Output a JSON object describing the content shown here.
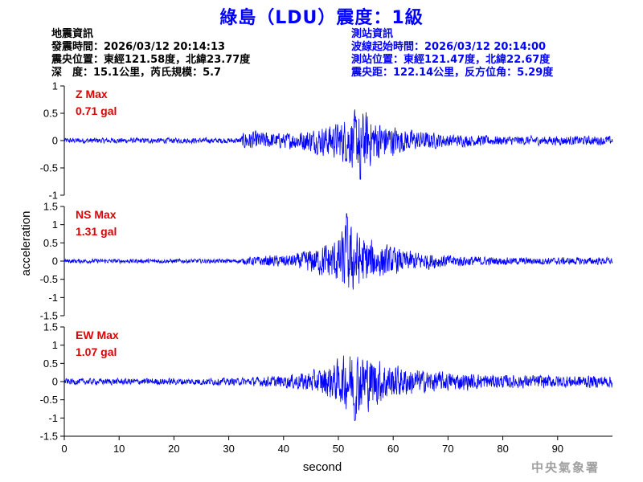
{
  "title": "綠島（LDU）震度：1級",
  "quake_info": {
    "heading": "地震資訊",
    "origin_time": "發震時間：2026/03/12 20:14:13",
    "epicenter": "震央位置：東經121.58度，北緯23.77度",
    "depth_magnitude": "深　度：15.1公里，芮氏規模：5.7"
  },
  "station_info": {
    "heading": "測站資訊",
    "wave_start": "波線起始時間：2026/03/12 20:14:00",
    "location": "測站位置：東經121.47度，北緯22.67度",
    "distance": "震央距：122.14公里，反方位角：5.29度"
  },
  "footer": "中央氣象署",
  "colors": {
    "trace": "#0000ff",
    "label": "#e00000",
    "title": "#0000ff",
    "axis": "#000000"
  },
  "chart_data": {
    "type": "line",
    "xlabel": "second",
    "ylabel": "acceleration",
    "xlim": [
      0,
      100
    ],
    "x_ticks": [
      "0",
      "10",
      "20",
      "30",
      "40",
      "50",
      "60",
      "70",
      "80",
      "90"
    ],
    "x_tick_values": [
      0,
      10,
      20,
      30,
      40,
      50,
      60,
      70,
      80,
      90
    ],
    "grid": false,
    "panels": [
      {
        "component": "Z",
        "name": "Z Max",
        "peak": "0.71 gal",
        "ylim": [
          -1,
          1
        ],
        "y_ticks": [
          "1",
          "0.5",
          "0",
          "-0.5",
          "-1"
        ],
        "y_tick_values": [
          1,
          0.5,
          0,
          -0.5,
          -1
        ],
        "envelope": [
          [
            0,
            0.06
          ],
          [
            32,
            0.06
          ],
          [
            33,
            0.22
          ],
          [
            40,
            0.16
          ],
          [
            45,
            0.25
          ],
          [
            50,
            0.4
          ],
          [
            52,
            0.55
          ],
          [
            54,
            0.71
          ],
          [
            57,
            0.45
          ],
          [
            62,
            0.25
          ],
          [
            70,
            0.14
          ],
          [
            80,
            0.1
          ],
          [
            100,
            0.1
          ]
        ]
      },
      {
        "component": "NS",
        "name": "NS Max",
        "peak": "1.31 gal",
        "ylim": [
          -1.5,
          1.5
        ],
        "y_ticks": [
          "1.5",
          "1",
          "0.5",
          "0",
          "-0.5",
          "-1",
          "-1.5"
        ],
        "y_tick_values": [
          1.5,
          1,
          0.5,
          0,
          -0.5,
          -1,
          -1.5
        ],
        "envelope": [
          [
            0,
            0.07
          ],
          [
            32,
            0.07
          ],
          [
            34,
            0.15
          ],
          [
            42,
            0.22
          ],
          [
            46,
            0.45
          ],
          [
            50,
            0.75
          ],
          [
            51.5,
            1.31
          ],
          [
            54,
            0.85
          ],
          [
            57,
            0.6
          ],
          [
            62,
            0.35
          ],
          [
            70,
            0.2
          ],
          [
            80,
            0.12
          ],
          [
            100,
            0.12
          ]
        ]
      },
      {
        "component": "EW",
        "name": "EW Max",
        "peak": "1.07 gal",
        "ylim": [
          -1.5,
          1.5
        ],
        "y_ticks": [
          "1.5",
          "1",
          "0.5",
          "0",
          "-0.5",
          "-1",
          "-1.5"
        ],
        "y_tick_values": [
          1.5,
          1,
          0.5,
          0,
          -0.5,
          -1,
          -1.5
        ],
        "envelope": [
          [
            0,
            0.1
          ],
          [
            32,
            0.12
          ],
          [
            40,
            0.2
          ],
          [
            46,
            0.38
          ],
          [
            50,
            0.7
          ],
          [
            53,
            1.07
          ],
          [
            56,
            0.85
          ],
          [
            60,
            0.55
          ],
          [
            65,
            0.38
          ],
          [
            70,
            0.3
          ],
          [
            80,
            0.22
          ],
          [
            100,
            0.2
          ]
        ]
      }
    ]
  }
}
